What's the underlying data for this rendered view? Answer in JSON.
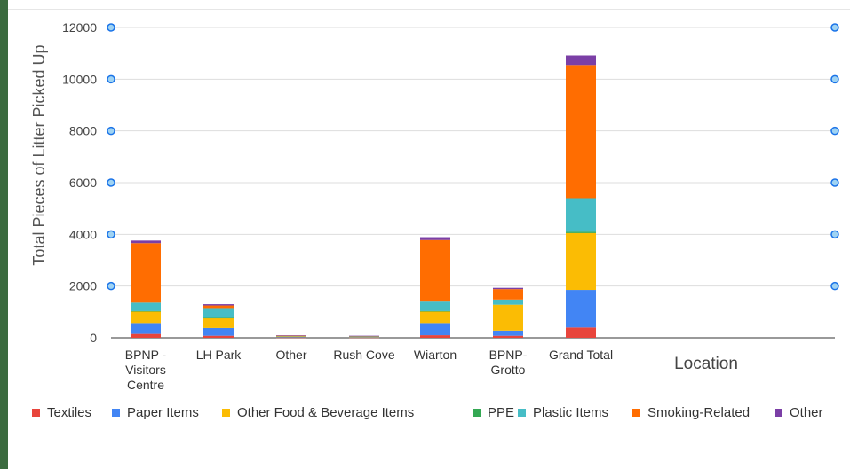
{
  "chart_data": {
    "type": "bar",
    "stacked": true,
    "title": "",
    "xlabel": "Location",
    "ylabel": "Total Pieces of Litter Picked Up",
    "ylim": [
      0,
      12000
    ],
    "yticks": [
      0,
      2000,
      4000,
      6000,
      8000,
      10000,
      12000
    ],
    "grid": true,
    "legend_position": "bottom",
    "categories": [
      [
        "BPNP -",
        "Visitors",
        "Centre"
      ],
      [
        "LH Park"
      ],
      [
        "Other"
      ],
      [
        "Rush Cove"
      ],
      [
        "Wiarton"
      ],
      [
        "BPNP-",
        "Grotto"
      ],
      [
        "Grand Total"
      ]
    ],
    "series": [
      {
        "name": "Textiles",
        "color": "#e8453c",
        "values": [
          150,
          80,
          10,
          10,
          100,
          80,
          400
        ]
      },
      {
        "name": "Paper Items",
        "color": "#4285f4",
        "values": [
          420,
          300,
          20,
          10,
          470,
          200,
          1450
        ]
      },
      {
        "name": "Other Food & Beverage Items",
        "color": "#fbbc04",
        "values": [
          450,
          380,
          20,
          20,
          450,
          1000,
          2200
        ]
      },
      {
        "name": "PPE",
        "color": "#34a853",
        "values": [
          10,
          10,
          0,
          0,
          10,
          0,
          50
        ]
      },
      {
        "name": "Plastic Items",
        "color": "#46bdc6",
        "values": [
          330,
          380,
          20,
          10,
          370,
          200,
          1300
        ]
      },
      {
        "name": "Smoking-Related",
        "color": "#ff6d01",
        "values": [
          2300,
          100,
          10,
          20,
          2380,
          400,
          5150
        ]
      },
      {
        "name": "Other",
        "color": "#7b3fa6",
        "values": [
          100,
          50,
          20,
          10,
          110,
          50,
          370
        ]
      }
    ]
  }
}
